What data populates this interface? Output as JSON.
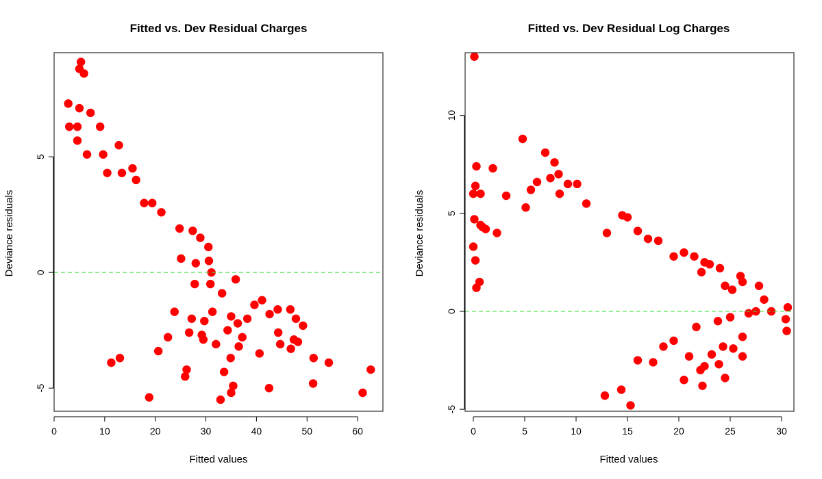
{
  "colors": {
    "points": "#ff0000",
    "reference_line": "#33dd33",
    "axes": "#000000"
  },
  "chart_data": [
    {
      "type": "scatter",
      "title": "Fitted vs. Dev Residual Charges",
      "xlabel": "Fitted values",
      "ylabel": "Deviance residuals",
      "xlim": [
        0,
        65
      ],
      "ylim": [
        -6,
        9.5
      ],
      "xticks": [
        0,
        10,
        20,
        30,
        40,
        50,
        60
      ],
      "yticks": [
        -5,
        0,
        5
      ],
      "grid": false,
      "reference_line": {
        "y": 0,
        "style": "dashed",
        "color": "#33dd33"
      },
      "points": [
        [
          5.3,
          9.1
        ],
        [
          5.0,
          8.8
        ],
        [
          5.9,
          8.6
        ],
        [
          2.8,
          7.3
        ],
        [
          5.0,
          7.1
        ],
        [
          7.2,
          6.9
        ],
        [
          3.0,
          6.3
        ],
        [
          4.6,
          6.3
        ],
        [
          9.1,
          6.3
        ],
        [
          4.6,
          5.7
        ],
        [
          12.8,
          5.5
        ],
        [
          6.5,
          5.1
        ],
        [
          9.7,
          5.1
        ],
        [
          15.5,
          4.5
        ],
        [
          10.5,
          4.3
        ],
        [
          13.4,
          4.3
        ],
        [
          16.2,
          4.0
        ],
        [
          17.8,
          3.0
        ],
        [
          19.4,
          3.0
        ],
        [
          21.2,
          2.6
        ],
        [
          24.8,
          1.9
        ],
        [
          27.4,
          1.8
        ],
        [
          28.9,
          1.5
        ],
        [
          30.5,
          1.1
        ],
        [
          25.1,
          0.6
        ],
        [
          28.0,
          0.4
        ],
        [
          30.6,
          0.5
        ],
        [
          31.1,
          0.0
        ],
        [
          35.9,
          -0.3
        ],
        [
          27.8,
          -0.5
        ],
        [
          33.2,
          -0.9
        ],
        [
          41.1,
          -1.2
        ],
        [
          39.6,
          -1.4
        ],
        [
          44.2,
          -1.6
        ],
        [
          46.7,
          -1.6
        ],
        [
          42.6,
          -1.8
        ],
        [
          31.3,
          -1.7
        ],
        [
          29.7,
          -2.1
        ],
        [
          36.3,
          -2.2
        ],
        [
          38.2,
          -2.0
        ],
        [
          47.8,
          -2.0
        ],
        [
          49.2,
          -2.3
        ],
        [
          44.3,
          -2.6
        ],
        [
          37.2,
          -2.8
        ],
        [
          47.4,
          -2.9
        ],
        [
          48.2,
          -3.0
        ],
        [
          36.5,
          -3.2
        ],
        [
          44.7,
          -3.1
        ],
        [
          46.8,
          -3.3
        ],
        [
          40.6,
          -3.5
        ],
        [
          34.9,
          -3.7
        ],
        [
          51.3,
          -3.7
        ],
        [
          54.3,
          -3.9
        ],
        [
          32.0,
          -3.1
        ],
        [
          33.6,
          -4.3
        ],
        [
          26.2,
          -4.2
        ],
        [
          25.9,
          -4.5
        ],
        [
          35.4,
          -4.9
        ],
        [
          35.0,
          -5.2
        ],
        [
          42.5,
          -5.0
        ],
        [
          51.2,
          -4.8
        ],
        [
          62.6,
          -4.2
        ],
        [
          61.0,
          -5.2
        ],
        [
          18.8,
          -5.4
        ],
        [
          32.9,
          -5.5
        ],
        [
          11.3,
          -3.9
        ],
        [
          13.0,
          -3.7
        ],
        [
          20.6,
          -3.4
        ],
        [
          22.5,
          -2.8
        ],
        [
          26.7,
          -2.6
        ],
        [
          29.5,
          -2.9
        ],
        [
          23.8,
          -1.7
        ],
        [
          27.2,
          -2.0
        ],
        [
          34.3,
          -2.5
        ],
        [
          35.0,
          -1.9
        ],
        [
          30.9,
          -0.5
        ],
        [
          29.2,
          -2.7
        ]
      ]
    },
    {
      "type": "scatter",
      "title": "Fitted vs. Dev Residual Log Charges",
      "xlabel": "Fitted values",
      "ylabel": "Deviance residuals",
      "xlim": [
        -0.8,
        31.2
      ],
      "ylim": [
        -5.1,
        13.2
      ],
      "xticks": [
        0,
        5,
        10,
        15,
        20,
        25,
        30
      ],
      "yticks": [
        -5,
        0,
        5,
        10
      ],
      "grid": false,
      "reference_line": {
        "y": 0,
        "style": "dashed",
        "color": "#33dd33"
      },
      "points": [
        [
          0.1,
          13.0
        ],
        [
          0.3,
          7.4
        ],
        [
          1.9,
          7.3
        ],
        [
          0.2,
          6.4
        ],
        [
          0.0,
          6.0
        ],
        [
          0.7,
          6.0
        ],
        [
          4.8,
          8.8
        ],
        [
          7.0,
          8.1
        ],
        [
          7.9,
          7.6
        ],
        [
          8.3,
          7.0
        ],
        [
          7.5,
          6.8
        ],
        [
          9.2,
          6.5
        ],
        [
          10.1,
          6.5
        ],
        [
          6.2,
          6.6
        ],
        [
          5.6,
          6.2
        ],
        [
          5.1,
          5.3
        ],
        [
          3.2,
          5.9
        ],
        [
          8.4,
          6.0
        ],
        [
          11.0,
          5.5
        ],
        [
          0.1,
          4.7
        ],
        [
          0.7,
          4.4
        ],
        [
          0.9,
          4.3
        ],
        [
          1.2,
          4.2
        ],
        [
          2.3,
          4.0
        ],
        [
          14.5,
          4.9
        ],
        [
          15.0,
          4.8
        ],
        [
          13.0,
          4.0
        ],
        [
          16.0,
          4.1
        ],
        [
          17.0,
          3.7
        ],
        [
          18.0,
          3.6
        ],
        [
          19.5,
          2.8
        ],
        [
          20.5,
          3.0
        ],
        [
          21.5,
          2.8
        ],
        [
          22.5,
          2.5
        ],
        [
          22.2,
          2.0
        ],
        [
          23.0,
          2.4
        ],
        [
          24.0,
          2.2
        ],
        [
          24.5,
          1.3
        ],
        [
          25.2,
          1.1
        ],
        [
          26.0,
          1.8
        ],
        [
          26.2,
          1.5
        ],
        [
          27.8,
          1.3
        ],
        [
          28.3,
          0.6
        ],
        [
          30.6,
          0.2
        ],
        [
          30.4,
          -0.4
        ],
        [
          30.5,
          -1.0
        ],
        [
          29.0,
          0.0
        ],
        [
          27.5,
          0.0
        ],
        [
          26.8,
          -0.1
        ],
        [
          25.0,
          -0.3
        ],
        [
          26.2,
          -1.3
        ],
        [
          25.3,
          -1.9
        ],
        [
          26.2,
          -2.3
        ],
        [
          24.3,
          -1.8
        ],
        [
          23.2,
          -2.2
        ],
        [
          22.5,
          -2.8
        ],
        [
          22.1,
          -3.0
        ],
        [
          21.0,
          -2.3
        ],
        [
          23.9,
          -2.7
        ],
        [
          24.5,
          -3.4
        ],
        [
          22.3,
          -3.8
        ],
        [
          20.5,
          -3.5
        ],
        [
          17.5,
          -2.6
        ],
        [
          16.0,
          -2.5
        ],
        [
          14.4,
          -4.0
        ],
        [
          15.3,
          -4.8
        ],
        [
          12.8,
          -4.3
        ],
        [
          18.5,
          -1.8
        ],
        [
          19.5,
          -1.5
        ],
        [
          21.7,
          -0.8
        ],
        [
          23.8,
          -0.5
        ],
        [
          0.2,
          2.6
        ],
        [
          0.3,
          1.2
        ],
        [
          0.0,
          3.3
        ],
        [
          0.6,
          1.5
        ]
      ]
    }
  ]
}
